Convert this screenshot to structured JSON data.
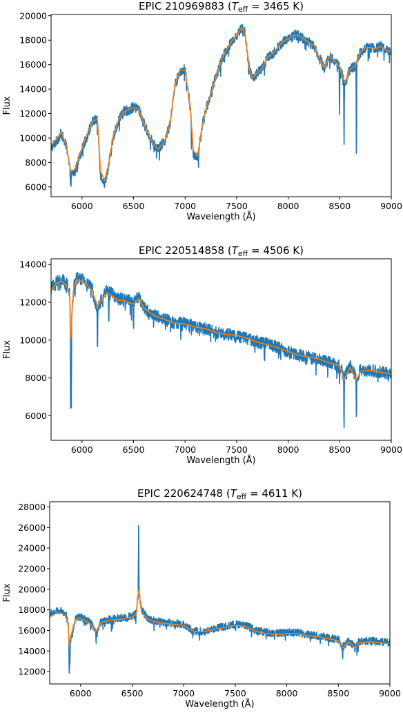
{
  "chart_data": [
    {
      "type": "line",
      "title": {
        "prefix": "EPIC 210969883 (",
        "sym": "T",
        "sub": "eff",
        "suffix": " = 3465 K)"
      },
      "xlabel": "Wavelength (Å)",
      "ylabel": "Flux",
      "xlim": [
        5700,
        9000
      ],
      "ylim": [
        5200,
        20100
      ],
      "x_ticks": [
        6000,
        6500,
        7000,
        7500,
        8000,
        8500,
        9000
      ],
      "y_ticks": [
        6000,
        8000,
        10000,
        12000,
        14000,
        16000,
        18000,
        20000
      ],
      "grid": false,
      "legend": "none",
      "colors": {
        "observed": "#1f77b4",
        "model": "#ff7f0e"
      },
      "series": [
        {
          "key": "observed",
          "noise": 420,
          "spikes": [
            [
              8542,
              8900
            ],
            [
              8662,
              6800
            ],
            [
              8498,
              11500
            ],
            [
              7062,
              9000
            ],
            [
              7130,
              7600
            ],
            [
              5890,
              6000
            ],
            [
              6150,
              9800
            ]
          ],
          "x": [
            5700,
            5750,
            5800,
            5850,
            5890,
            5930,
            5980,
            6050,
            6100,
            6150,
            6180,
            6220,
            6260,
            6300,
            6350,
            6400,
            6450,
            6500,
            6550,
            6600,
            6650,
            6700,
            6740,
            6780,
            6820,
            6860,
            6900,
            6950,
            7000,
            7050,
            7080,
            7120,
            7160,
            7200,
            7250,
            7300,
            7350,
            7400,
            7450,
            7500,
            7550,
            7580,
            7620,
            7650,
            7700,
            7750,
            7800,
            7850,
            7900,
            7950,
            8000,
            8050,
            8100,
            8150,
            8200,
            8250,
            8300,
            8350,
            8400,
            8450,
            8500,
            8550,
            8600,
            8650,
            8700,
            8750,
            8800,
            8850,
            8900,
            8950,
            9000
          ],
          "y": [
            9200,
            9700,
            10400,
            9200,
            7000,
            7200,
            8600,
            10200,
            11300,
            11600,
            7000,
            6300,
            7800,
            9900,
            11400,
            12100,
            12300,
            12500,
            12400,
            11200,
            10200,
            9400,
            9100,
            9500,
            10100,
            11500,
            14300,
            15500,
            15600,
            12500,
            8800,
            8300,
            10700,
            12300,
            13600,
            15000,
            16300,
            17200,
            17900,
            18400,
            19000,
            18600,
            15800,
            14900,
            15300,
            15700,
            16600,
            16900,
            17400,
            17900,
            18100,
            18400,
            18400,
            18100,
            17800,
            17600,
            16600,
            15700,
            16700,
            16300,
            15800,
            14400,
            15600,
            15900,
            17000,
            17400,
            17400,
            17300,
            17500,
            17200,
            17000
          ]
        },
        {
          "key": "model",
          "x": [
            5700,
            5750,
            5800,
            5850,
            5890,
            5930,
            5980,
            6050,
            6100,
            6150,
            6180,
            6220,
            6260,
            6300,
            6350,
            6400,
            6450,
            6500,
            6550,
            6600,
            6650,
            6700,
            6740,
            6780,
            6820,
            6860,
            6900,
            6950,
            7000,
            7050,
            7080,
            7120,
            7160,
            7200,
            7250,
            7300,
            7350,
            7400,
            7450,
            7500,
            7550,
            7580,
            7620,
            7650,
            7700,
            7750,
            7800,
            7850,
            7900,
            7950,
            8000,
            8050,
            8100,
            8150,
            8200,
            8250,
            8300,
            8350,
            8400,
            8450,
            8500,
            8550,
            8600,
            8650,
            8700,
            8750,
            8800,
            8850,
            8900,
            8950,
            9000
          ],
          "y": [
            9400,
            9900,
            10500,
            9300,
            7300,
            7400,
            8700,
            10300,
            11300,
            11600,
            7300,
            6500,
            7900,
            10000,
            11400,
            12100,
            12300,
            12500,
            12400,
            11200,
            10200,
            9400,
            9100,
            9500,
            10100,
            11500,
            14300,
            15500,
            15600,
            12500,
            9000,
            8500,
            10700,
            12300,
            13600,
            15000,
            16300,
            17200,
            17900,
            18400,
            19000,
            18600,
            15800,
            14900,
            15300,
            15700,
            16600,
            16900,
            17400,
            17900,
            18100,
            18400,
            18400,
            18100,
            17800,
            17600,
            16600,
            15700,
            16700,
            16300,
            15800,
            14500,
            15600,
            15900,
            17000,
            17400,
            17400,
            17300,
            17500,
            17200,
            17000
          ]
        }
      ]
    },
    {
      "type": "line",
      "title": {
        "prefix": "EPIC 220514858 (",
        "sym": "T",
        "sub": "eff",
        "suffix": " = 4506 K)"
      },
      "xlabel": "Wavelength (Å)",
      "ylabel": "Flux",
      "xlim": [
        5700,
        9000
      ],
      "ylim": [
        4700,
        14300
      ],
      "x_ticks": [
        6000,
        6500,
        7000,
        7500,
        8000,
        8500,
        9000
      ],
      "y_ticks": [
        6000,
        8000,
        10000,
        12000,
        14000
      ],
      "grid": false,
      "legend": "none",
      "colors": {
        "observed": "#1f77b4",
        "model": "#ff7f0e"
      },
      "series": [
        {
          "key": "observed",
          "noise": 330,
          "spikes": [
            [
              5890,
              5400
            ],
            [
              5896,
              6200
            ],
            [
              6150,
              9000
            ],
            [
              6500,
              10200
            ],
            [
              8498,
              7600
            ],
            [
              8542,
              5100
            ],
            [
              8662,
              5400
            ],
            [
              6260,
              10400
            ]
          ],
          "x": [
            5700,
            5750,
            5800,
            5850,
            5880,
            5890,
            5900,
            5920,
            5950,
            6000,
            6050,
            6100,
            6150,
            6200,
            6250,
            6300,
            6350,
            6400,
            6450,
            6500,
            6550,
            6600,
            6650,
            6700,
            6800,
            6900,
            7000,
            7100,
            7200,
            7300,
            7400,
            7500,
            7600,
            7700,
            7800,
            7900,
            8000,
            8100,
            8200,
            8300,
            8400,
            8500,
            8542,
            8600,
            8662,
            8700,
            8800,
            8900,
            9000
          ],
          "y": [
            12700,
            13100,
            13200,
            13000,
            12400,
            10200,
            11200,
            12900,
            13300,
            13200,
            13000,
            12700,
            11600,
            12300,
            12700,
            12400,
            12200,
            12200,
            12100,
            12000,
            12300,
            11700,
            11500,
            11300,
            11100,
            10900,
            10900,
            10700,
            10600,
            10400,
            10300,
            10250,
            10100,
            9900,
            9800,
            9600,
            9400,
            9200,
            9100,
            9000,
            8800,
            8700,
            8000,
            8600,
            8000,
            8400,
            8400,
            8300,
            8200
          ]
        },
        {
          "key": "model",
          "x": [
            5700,
            5750,
            5800,
            5850,
            5880,
            5890,
            5900,
            5920,
            5950,
            6000,
            6050,
            6100,
            6150,
            6200,
            6250,
            6300,
            6350,
            6400,
            6450,
            6500,
            6550,
            6600,
            6650,
            6700,
            6800,
            6900,
            7000,
            7100,
            7200,
            7300,
            7400,
            7500,
            7600,
            7700,
            7800,
            7900,
            8000,
            8100,
            8200,
            8300,
            8400,
            8500,
            8542,
            8600,
            8662,
            8700,
            8800,
            8900,
            9000
          ],
          "y": [
            12600,
            13000,
            13100,
            12900,
            12400,
            9800,
            11300,
            12800,
            13200,
            13100,
            12900,
            12600,
            11800,
            12200,
            12500,
            12300,
            12100,
            12100,
            12000,
            11900,
            12200,
            11700,
            11500,
            11300,
            11100,
            10900,
            10850,
            10700,
            10600,
            10400,
            10300,
            10250,
            10100,
            9900,
            9750,
            9600,
            9400,
            9200,
            9100,
            9000,
            8800,
            8650,
            7900,
            8550,
            7900,
            8350,
            8400,
            8300,
            8200
          ]
        }
      ]
    },
    {
      "type": "line",
      "title": {
        "prefix": "EPIC 220624748 (",
        "sym": "T",
        "sub": "eff",
        "suffix": " = 4611 K)"
      },
      "xlabel": "Wavelength (Å)",
      "ylabel": "Flux",
      "xlim": [
        5700,
        9000
      ],
      "ylim": [
        10800,
        28500
      ],
      "x_ticks": [
        6000,
        6500,
        7000,
        7500,
        8000,
        8500,
        9000
      ],
      "y_ticks": [
        12000,
        14000,
        16000,
        18000,
        20000,
        22000,
        24000,
        26000,
        28000
      ],
      "grid": false,
      "legend": "none",
      "colors": {
        "observed": "#1f77b4",
        "model": "#ff7f0e"
      },
      "series": [
        {
          "key": "observed",
          "noise": 380,
          "spikes": [
            [
              5890,
              11300
            ],
            [
              5896,
              12600
            ],
            [
              6563,
              27300
            ],
            [
              6150,
              14500
            ],
            [
              8542,
              13100
            ],
            [
              8662,
              13700
            ]
          ],
          "x": [
            5700,
            5750,
            5800,
            5850,
            5880,
            5890,
            5900,
            5950,
            6000,
            6050,
            6100,
            6150,
            6200,
            6300,
            6400,
            6500,
            6540,
            6563,
            6590,
            6650,
            6700,
            6800,
            6900,
            7000,
            7100,
            7200,
            7300,
            7400,
            7500,
            7600,
            7700,
            7800,
            7900,
            8000,
            8100,
            8200,
            8300,
            8400,
            8500,
            8542,
            8600,
            8662,
            8700,
            8800,
            8900,
            9000
          ],
          "y": [
            17600,
            17800,
            17900,
            17700,
            16800,
            13500,
            15000,
            17200,
            17300,
            17000,
            16700,
            15800,
            16900,
            17100,
            17200,
            17400,
            17700,
            20000,
            18000,
            17200,
            17000,
            16800,
            16700,
            16600,
            15900,
            15900,
            16200,
            16400,
            16600,
            16500,
            16000,
            15800,
            15700,
            15800,
            15800,
            15600,
            15500,
            15300,
            15100,
            14400,
            15000,
            14400,
            14900,
            15000,
            14900,
            14800
          ]
        },
        {
          "key": "model",
          "x": [
            5700,
            5750,
            5800,
            5850,
            5880,
            5890,
            5900,
            5950,
            6000,
            6050,
            6100,
            6150,
            6200,
            6300,
            6400,
            6500,
            6540,
            6563,
            6590,
            6650,
            6700,
            6800,
            6900,
            7000,
            7100,
            7200,
            7300,
            7400,
            7500,
            7600,
            7700,
            7800,
            7900,
            8000,
            8100,
            8200,
            8300,
            8400,
            8500,
            8542,
            8600,
            8662,
            8700,
            8800,
            8900,
            9000
          ],
          "y": [
            17300,
            17600,
            17700,
            17500,
            16700,
            14300,
            15300,
            17100,
            17200,
            16900,
            16600,
            15900,
            16800,
            17000,
            17100,
            17300,
            17600,
            20000,
            17800,
            17100,
            16900,
            16700,
            16600,
            16500,
            15900,
            15900,
            16100,
            16300,
            16500,
            16400,
            15900,
            15700,
            15600,
            15700,
            15700,
            15500,
            15400,
            15200,
            15000,
            14300,
            14900,
            14300,
            14800,
            14900,
            14800,
            14700
          ]
        }
      ]
    }
  ]
}
